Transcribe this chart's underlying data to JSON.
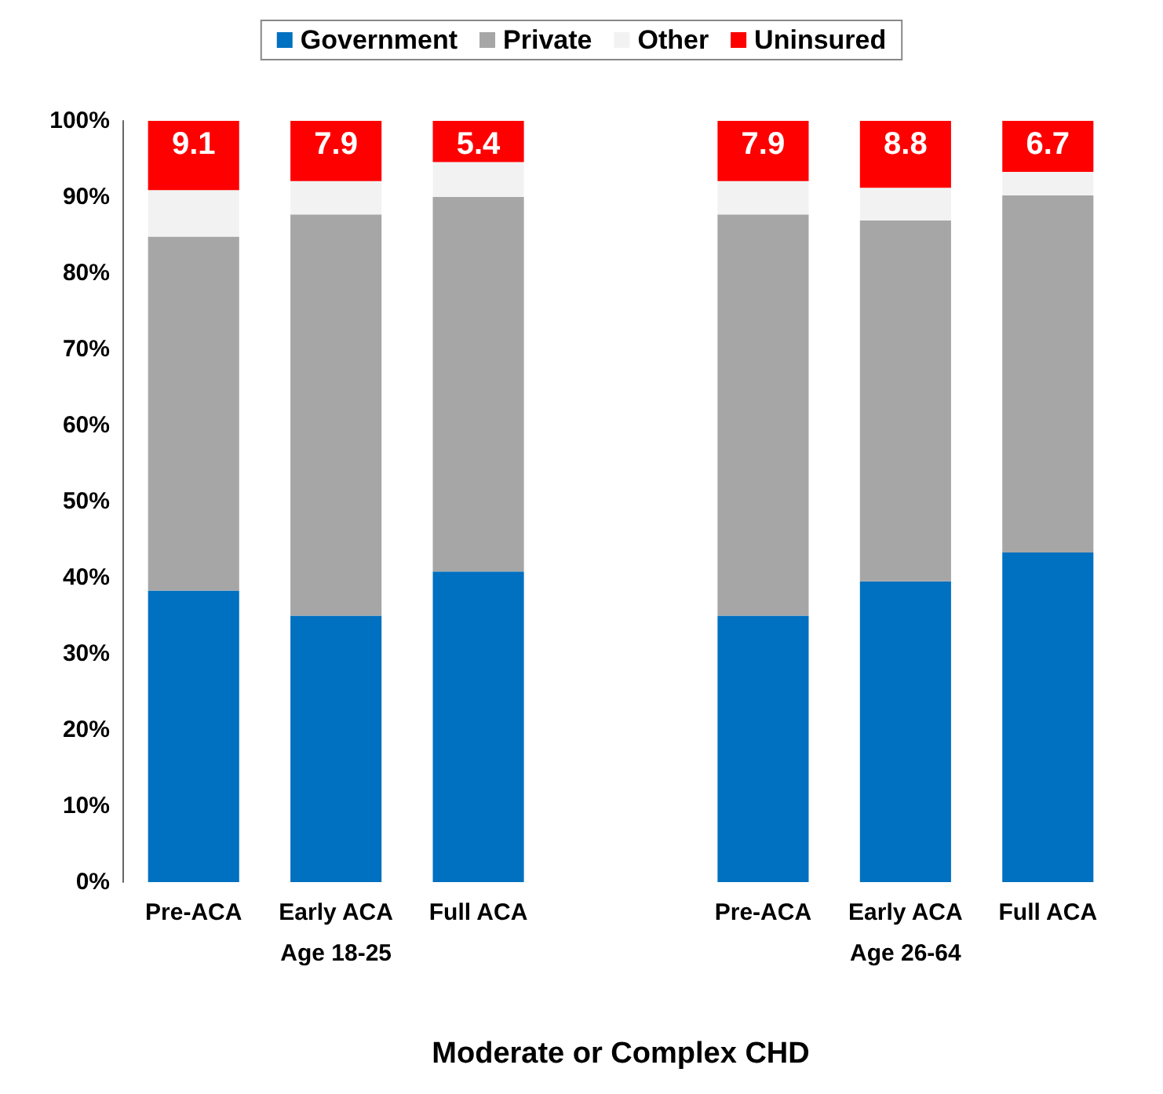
{
  "chart_data": {
    "type": "bar",
    "stacked": true,
    "xlabel": "Moderate or Complex CHD",
    "categories": [
      "Pre-ACA",
      "Early ACA",
      "Full ACA",
      null,
      "Pre-ACA",
      "Early ACA",
      "Full ACA"
    ],
    "annotations": [
      "Age 18-25",
      "Age 26-64"
    ],
    "series": [
      {
        "name": "Government",
        "color": "#0070c0",
        "values": [
          38.3,
          35.0,
          40.8,
          null,
          35.0,
          39.5,
          43.3
        ]
      },
      {
        "name": "Private",
        "color": "#a6a6a6",
        "values": [
          46.5,
          52.7,
          49.2,
          null,
          52.7,
          47.4,
          46.9
        ]
      },
      {
        "name": "Other",
        "color": "#f2f2f2",
        "values": [
          6.1,
          4.4,
          4.6,
          null,
          4.4,
          4.3,
          3.1
        ]
      },
      {
        "name": "Uninsured",
        "color": "#ff0000",
        "values": [
          9.1,
          7.9,
          5.4,
          null,
          7.9,
          8.8,
          6.7
        ],
        "value_labels": [
          "9.1",
          "7.9",
          "5.4",
          null,
          "7.9",
          "8.8",
          "6.7"
        ]
      }
    ],
    "ylim": [
      0,
      100
    ],
    "yticks": [
      {
        "value": 0,
        "label": "0%"
      },
      {
        "value": 10,
        "label": "10%"
      },
      {
        "value": 20,
        "label": "20%"
      },
      {
        "value": 30,
        "label": "30%"
      },
      {
        "value": 40,
        "label": "40%"
      },
      {
        "value": 50,
        "label": "50%"
      },
      {
        "value": 60,
        "label": "60%"
      },
      {
        "value": 70,
        "label": "70%"
      },
      {
        "value": 80,
        "label": "80%"
      },
      {
        "value": 90,
        "label": "90%"
      },
      {
        "value": 100,
        "label": "100%"
      }
    ],
    "grid": false,
    "legend": "top"
  }
}
